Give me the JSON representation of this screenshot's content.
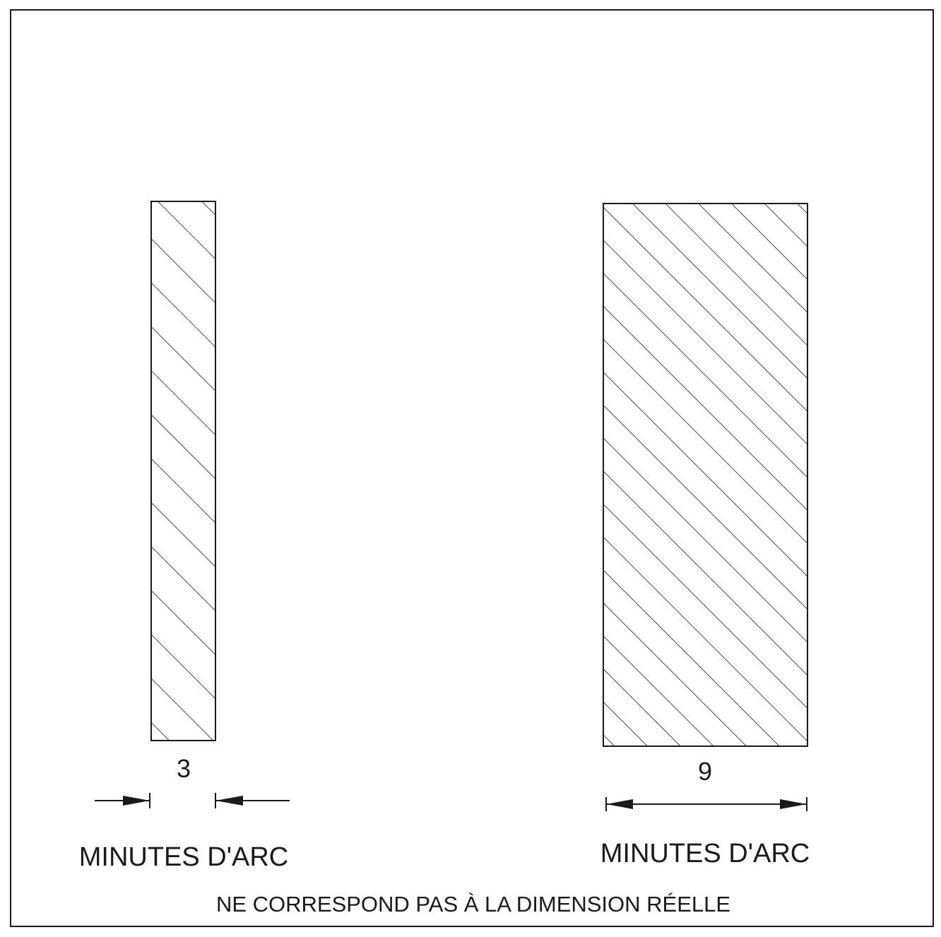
{
  "left_bar": {
    "width_value": "3",
    "unit_label": "MINUTES D'ARC"
  },
  "right_bar": {
    "width_value": "9",
    "unit_label": "MINUTES D'ARC"
  },
  "note": "NE CORRESPOND PAS À LA DIMENSION RÉELLE",
  "colors": {
    "ink": "#1a1a1a",
    "paper": "#ffffff"
  }
}
